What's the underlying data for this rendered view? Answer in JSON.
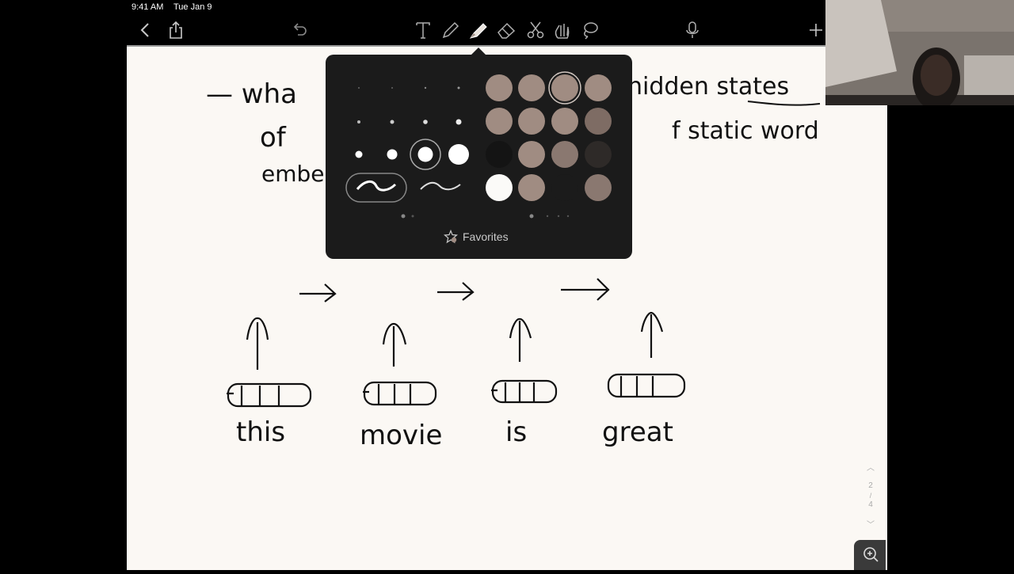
{
  "status_bar": {
    "time": "9:41 AM",
    "date": "Tue Jan 9"
  },
  "toolbar": {
    "icons": [
      "back-icon",
      "share-icon",
      "undo-icon",
      "text-tool-icon",
      "pen-tool-icon",
      "highlighter-tool-icon",
      "eraser-tool-icon",
      "scissors-tool-icon",
      "hand-tool-icon",
      "lasso-tool-icon",
      "microphone-icon",
      "add-page-icon"
    ],
    "active_tool": "highlighter"
  },
  "popover": {
    "favorites_label": "Favorites",
    "swatch_color": "#a08c82",
    "active_color_index": 2,
    "active_size_index": 2,
    "active_style_index": 0
  },
  "notes": {
    "line1_left": "— wha",
    "line1_right": "hidden states",
    "line2_left": "of",
    "line2_right": "f static word",
    "line3_left": "embe",
    "words": [
      "this",
      "movie",
      "is",
      "great"
    ]
  },
  "page_indicator": {
    "current": "2",
    "total": "4"
  },
  "webcam": {
    "label": "presenter video"
  }
}
